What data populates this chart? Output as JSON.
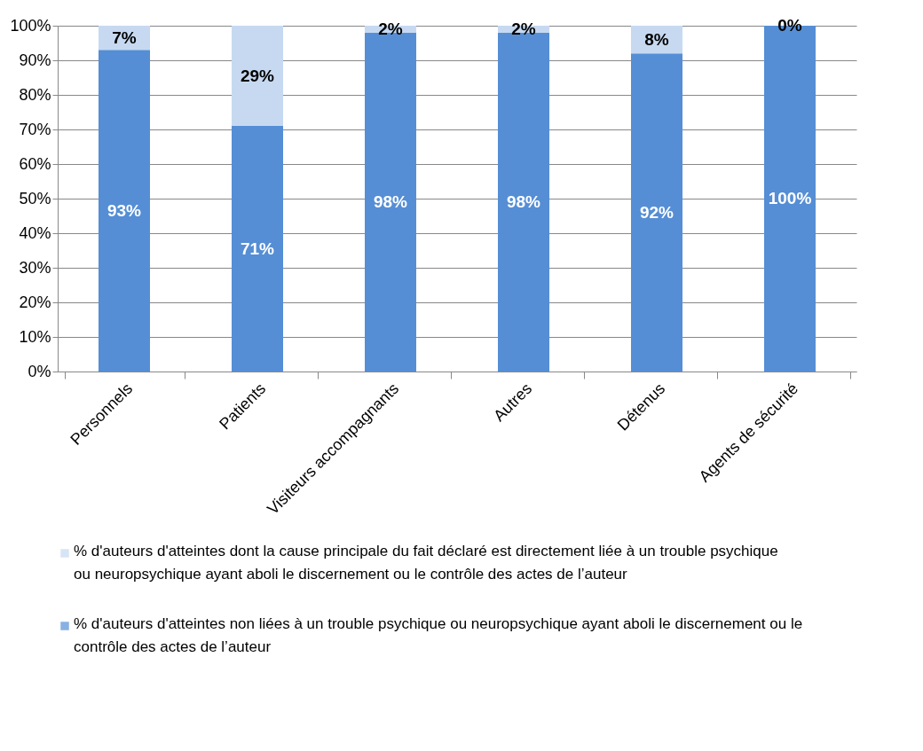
{
  "chart_data": {
    "type": "bar",
    "stacked": true,
    "categories": [
      "Personnels",
      "Patients",
      "Visiteurs accompagnants",
      "Autres",
      "Détenus",
      "Agents de sécurité"
    ],
    "series": [
      {
        "name": "% d'auteurs d'atteintes non liées à un trouble psychique ou neuropsychique ayant aboli le discernement ou le contrôle des actes de l’auteur",
        "color": "#558ed5",
        "values": [
          93,
          71,
          98,
          98,
          92,
          100
        ],
        "value_labels": [
          "93%",
          "71%",
          "98%",
          "98%",
          "92%",
          "100%"
        ]
      },
      {
        "name": "% d'auteurs d'atteintes dont la cause principale du fait déclaré est directement liée à un trouble psychique ou neuropsychique ayant aboli le discernement ou le contrôle des actes de l’auteur",
        "color": "#c6d9f1",
        "values": [
          7,
          29,
          2,
          2,
          8,
          0
        ],
        "value_labels": [
          "7%",
          "29%",
          "2%",
          "2%",
          "8%",
          "0%"
        ]
      }
    ],
    "ylim": [
      0,
      100
    ],
    "yticks": [
      {
        "value": 0,
        "label": "0%"
      },
      {
        "value": 10,
        "label": "10%"
      },
      {
        "value": 20,
        "label": "20%"
      },
      {
        "value": 30,
        "label": "30%"
      },
      {
        "value": 40,
        "label": "40%"
      },
      {
        "value": 50,
        "label": "50%"
      },
      {
        "value": 60,
        "label": "60%"
      },
      {
        "value": 70,
        "label": "70%"
      },
      {
        "value": 80,
        "label": "80%"
      },
      {
        "value": 90,
        "label": "90%"
      },
      {
        "value": 100,
        "label": "100%"
      }
    ],
    "grid": "y",
    "legend": "bottom"
  }
}
